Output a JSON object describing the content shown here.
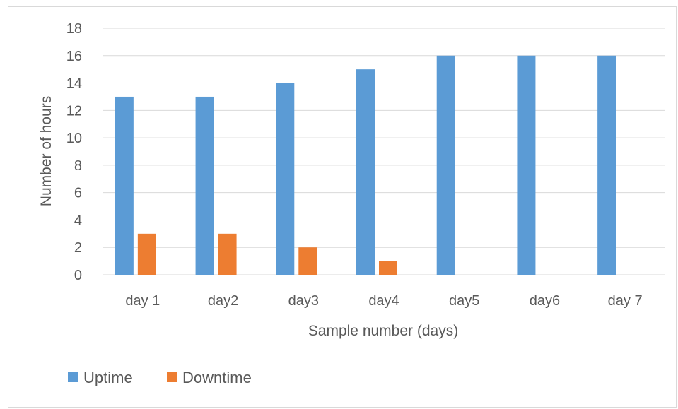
{
  "chart_data": {
    "type": "bar",
    "title": "",
    "xlabel": "Sample number (days)",
    "ylabel": "Number of hours",
    "categories": [
      "day 1",
      "day2",
      "day3",
      "day4",
      "day5",
      "day6",
      "day 7"
    ],
    "series": [
      {
        "name": "Uptime",
        "values": [
          13,
          13,
          14,
          15,
          16,
          16,
          16
        ],
        "color": "#5b9bd5"
      },
      {
        "name": "Downtime",
        "values": [
          3,
          3,
          2,
          1,
          0,
          0,
          0
        ],
        "color": "#ed7d31"
      }
    ],
    "ylim": [
      0,
      18
    ],
    "yticks": [
      0,
      2,
      4,
      6,
      8,
      10,
      12,
      14,
      16,
      18
    ],
    "grid": true,
    "legend": "bottom-left"
  }
}
